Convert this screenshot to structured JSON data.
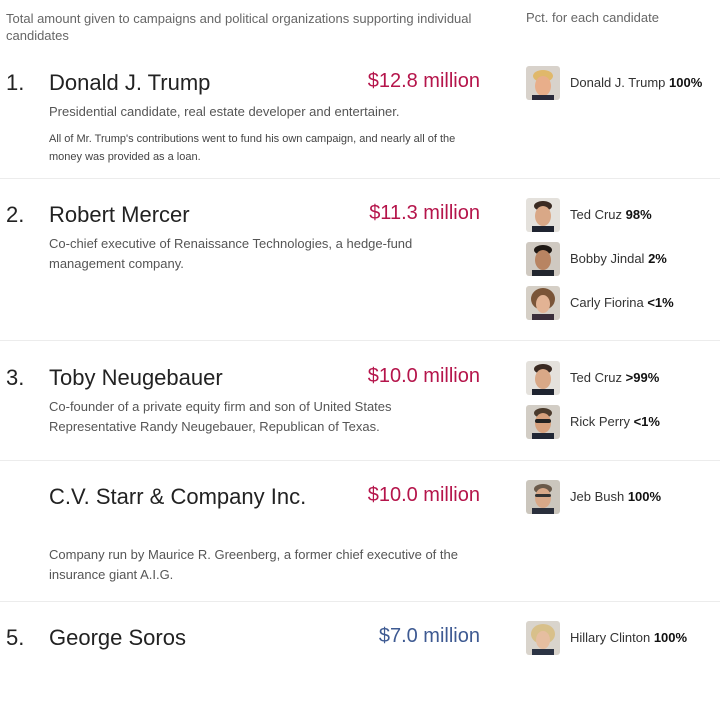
{
  "header": {
    "left": "Total amount given to campaigns and political organizations supporting individual candidates",
    "right": "Pct. for each candidate"
  },
  "entries": [
    {
      "rank": "1.",
      "name": "Donald J. Trump",
      "amount": "$12.8 million",
      "desc": "Presidential candidate, real estate developer and entertainer.",
      "note": "All of Mr. Trump's contributions went to fund his own campaign, and nearly all of the money was provided as a loan.",
      "candidates": [
        {
          "name": "Donald J. Trump",
          "pct": "100%",
          "icon": "trump-face-icon"
        }
      ]
    },
    {
      "rank": "2.",
      "name": "Robert Mercer",
      "amount": "$11.3 million",
      "desc": "Co-chief executive of Renaissance Technologies, a hedge-fund management company.",
      "candidates": [
        {
          "name": "Ted Cruz",
          "pct": "98%",
          "icon": "cruz-face-icon"
        },
        {
          "name": "Bobby Jindal",
          "pct": "2%",
          "icon": "jindal-face-icon"
        },
        {
          "name": "Carly Fiorina",
          "pct": "<1%",
          "icon": "fiorina-face-icon"
        }
      ]
    },
    {
      "rank": "3.",
      "name": "Toby Neugebauer",
      "amount": "$10.0 million",
      "desc": "Co-founder of a private equity firm and son of United States Representative Randy Neugebauer, Republican of Texas.",
      "candidates": [
        {
          "name": "Ted Cruz",
          "pct": ">99%",
          "icon": "cruz-face-icon"
        },
        {
          "name": "Rick Perry",
          "pct": "<1%",
          "icon": "perry-face-icon"
        }
      ]
    },
    {
      "rank": "",
      "name": "C.V. Starr & Company Inc.",
      "amount": "$10.0 million",
      "desc": "Company run by Maurice R. Greenberg, a former chief executive of the insurance giant A.I.G.",
      "candidates": [
        {
          "name": "Jeb Bush",
          "pct": "100%",
          "icon": "bush-face-icon"
        }
      ]
    },
    {
      "rank": "5.",
      "name": "George Soros",
      "amount": "$7.0 million",
      "candidates": [
        {
          "name": "Hillary Clinton",
          "pct": "100%",
          "icon": "clinton-face-icon"
        }
      ]
    }
  ],
  "colors": {
    "republican_amount": "#b5154b",
    "democratic_amount": "#3e5a92"
  }
}
